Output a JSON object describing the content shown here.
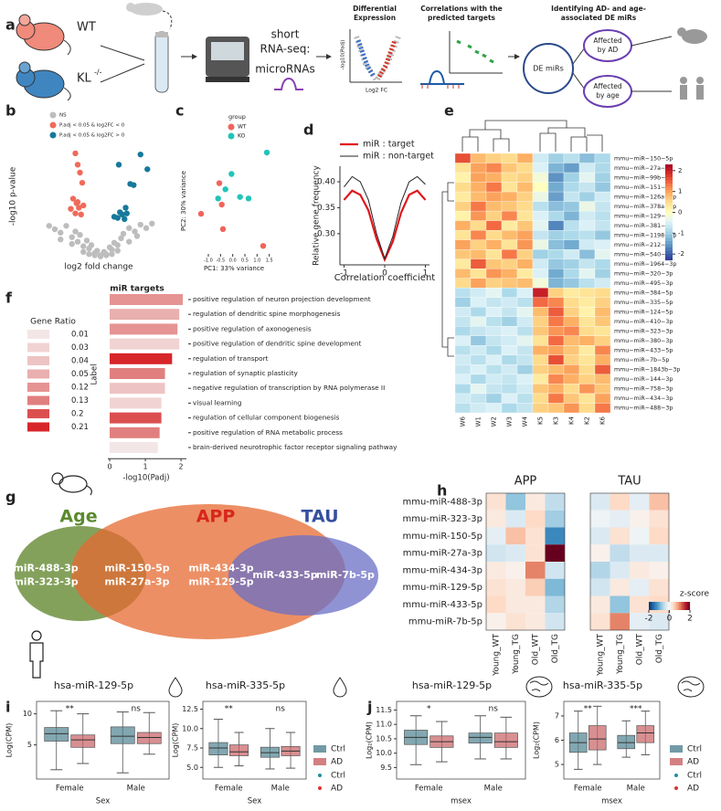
{
  "a": {
    "letter": "a",
    "wt": "WT",
    "kl": "KL",
    "kl_sup": "-/-",
    "seq_line1": "short",
    "seq_line2": "RNA-seq:",
    "mirna": "microRNAs",
    "de_title_1": "Differential",
    "de_title_2": "Expression",
    "de_ylabel": "-log10(Padj)",
    "de_xlabel": "Log2 FC",
    "corr_title_1": "Correlations with the",
    "corr_title_2": "predicted targets",
    "id_title_1": "Identifying AD- and age-",
    "id_title_2": "associated DE miRs",
    "de_mirs": "DE miRs",
    "ad_1": "Affected",
    "ad_2": "by AD",
    "age_1": "Affected",
    "age_2": "by age"
  },
  "b": {
    "type": "scatter",
    "letter": "b",
    "ylabel": "-log10 p-value",
    "xlabel": "log2 fold change",
    "xlim": [
      -6,
      6
    ],
    "ylim": [
      0,
      10
    ],
    "series": [
      {
        "name": "NS",
        "color": "#bdbdbd",
        "x": [
          -4.5,
          -4,
          -3.5,
          -3,
          -2.5,
          -2.2,
          -2,
          -1.8,
          -1.5,
          -1.2,
          -1,
          -0.8,
          -0.5,
          -0.3,
          0,
          0.3,
          0.5,
          0.8,
          1,
          1.2,
          1.5,
          1.8,
          2,
          2.5,
          3,
          3.5,
          4,
          4.5,
          -1.5,
          -1,
          -0.5,
          0,
          0.5,
          1,
          1.5,
          -2.5,
          2.5,
          -3.5,
          3.2
        ],
        "values": [
          2.8,
          2.5,
          2.2,
          2.8,
          1.8,
          2.3,
          1.4,
          2.0,
          1.0,
          1.5,
          0.8,
          1.1,
          0.4,
          0.6,
          0.2,
          0.5,
          0.3,
          0.9,
          0.7,
          1.3,
          1.1,
          1.7,
          2.1,
          2.6,
          2.3,
          2.9,
          2.6,
          3.0,
          0.5,
          0.3,
          0.2,
          0.1,
          0.2,
          0.3,
          0.6,
          1.2,
          1.4,
          1.6,
          1.9
        ]
      },
      {
        "name": "P.adj < 0.05 & log2FC < 0",
        "color": "#ef6b5b",
        "x": [
          -2.2,
          -2.0,
          -1.8,
          -1.6,
          -2.4,
          -2.1,
          -1.5,
          -2.6,
          -1.9,
          -2.2,
          -1.7,
          -2.0
        ],
        "values": [
          9.2,
          8.2,
          7.5,
          6.6,
          5.2,
          4.8,
          4.6,
          4.3,
          4.4,
          3.9,
          3.8,
          4.9
        ]
      },
      {
        "name": "P.adj < 0.05 & log2FC > 0",
        "color": "#17799b",
        "x": [
          1.6,
          3.5,
          4.1,
          2.6,
          2.9,
          2.2,
          1.7,
          1.2,
          1.9,
          2.3,
          2.1,
          1.5
        ],
        "values": [
          8.2,
          9.1,
          7.8,
          6.5,
          6.4,
          4.4,
          4.0,
          3.6,
          3.8,
          3.9,
          3.4,
          3.5
        ]
      }
    ]
  },
  "c": {
    "type": "scatter",
    "letter": "c",
    "xlabel": "PC1: 33% variance",
    "ylabel": "PC2: 30% variance",
    "legend_title": "group",
    "xlim": [
      -1.6,
      1.7
    ],
    "ylim": [
      -1.7,
      1.7
    ],
    "xticks": [
      {
        "value": -1,
        "label": "-1.0"
      },
      -0.5,
      {
        "value": 0,
        "label": "0.0"
      },
      0.5,
      {
        "value": 1,
        "label": "1.0"
      },
      1.5
    ],
    "series": [
      {
        "name": "WT",
        "color": "#f0645a",
        "x": [
          -1.3,
          -0.55,
          -0.4,
          -0.45,
          1.25
        ],
        "values": [
          -0.45,
          0.55,
          -0.95,
          -0.15,
          -1.5
        ]
      },
      {
        "name": "KO",
        "color": "#22c4b8",
        "x": [
          -0.3,
          -0.6,
          -0.05,
          0.3,
          0.65,
          1.4
        ],
        "values": [
          0.35,
          0.05,
          0.85,
          0.1,
          0.05,
          1.55
        ]
      }
    ]
  },
  "d": {
    "type": "line",
    "letter": "d",
    "xlabel": "Correlation coefficient",
    "ylabel": "Relative gene frequency",
    "xlim": [
      -1.1,
      1.1
    ],
    "ylim": [
      0.24,
      0.43
    ],
    "xticks": [
      -1,
      0,
      1
    ],
    "yticks": [
      {
        "value": 0.3,
        "label": "0.30"
      },
      0.35,
      {
        "value": 0.4,
        "label": "0.40"
      }
    ],
    "x": [
      -1,
      -0.8,
      -0.6,
      -0.4,
      -0.2,
      0,
      0.2,
      0.4,
      0.6,
      0.8,
      1
    ],
    "series": [
      {
        "name": "miR : target",
        "color": "#e0161b",
        "values": [
          0.365,
          0.383,
          0.375,
          0.345,
          0.29,
          0.25,
          0.285,
          0.34,
          0.375,
          0.383,
          0.365
        ]
      },
      {
        "name": "miR : non-target",
        "color": "#222222",
        "values": [
          0.39,
          0.41,
          0.4,
          0.365,
          0.3,
          0.252,
          0.295,
          0.36,
          0.4,
          0.41,
          0.395
        ]
      }
    ]
  },
  "e": {
    "type": "heatmap",
    "letter": "e",
    "columns": [
      "W6",
      "W1",
      "W2",
      "W3",
      "W4",
      "K5",
      "K3",
      "K4",
      "K2",
      "K6"
    ],
    "rows": [
      "mmu−miR−150−5p",
      "mmu−miR−27a−3p",
      "mmu−miR−99b−3p",
      "mmu−miR−151−3p",
      "mmu−miR−126a−3p",
      "mmu−miR−378a−3p",
      "mmu−miR−129−5p",
      "mmu−miR−381−3p",
      "mmu−miR−1198−5p",
      "mmu−miR−212−5p",
      "mmu−miR−540−3p",
      "mmu−miR−1964−3p",
      "mmu−miR−320−3p",
      "mmu−miR−495−3p",
      "mmu−miR−384−5p",
      "mmu−miR−335−5p",
      "mmu−miR−124−5p",
      "mmu−miR−410−3p",
      "mmu−miR−323−3p",
      "mmu−miR−380−3p",
      "mmu−miR−433−5p",
      "mmu−miR−7b−5p",
      "mmu−miR−1843b−3p",
      "mmu−miR−144−3p",
      "mmu−miR−758−3p",
      "mmu−miR−434−3p",
      "mmu−miR−488−3p"
    ],
    "values": [
      [
        1.6,
        0.8,
        0.6,
        0.5,
        0.9,
        -0.6,
        -1.0,
        -0.8,
        -1.2,
        -0.9
      ],
      [
        0.4,
        1.0,
        1.2,
        0.7,
        0.5,
        -0.5,
        -1.3,
        -1.5,
        -0.6,
        -0.9
      ],
      [
        0.2,
        1.0,
        0.9,
        0.5,
        0.6,
        -0.2,
        -1.6,
        -1.0,
        -0.4,
        -1.0
      ],
      [
        0.5,
        0.9,
        1.3,
        0.4,
        0.8,
        0.0,
        -1.4,
        -0.9,
        -0.7,
        -1.1
      ],
      [
        0.3,
        0.8,
        1.0,
        0.9,
        0.6,
        -0.3,
        -1.5,
        -0.7,
        -1.0,
        -0.6
      ],
      [
        0.6,
        1.3,
        0.8,
        0.7,
        0.5,
        -0.8,
        -1.2,
        -1.1,
        -0.3,
        -0.7
      ],
      [
        0.2,
        1.1,
        0.6,
        1.2,
        0.4,
        -0.5,
        -0.9,
        -1.3,
        -0.6,
        -0.8
      ],
      [
        0.9,
        0.5,
        1.4,
        0.3,
        0.7,
        -0.4,
        -1.7,
        -0.8,
        -0.5,
        -0.7
      ],
      [
        0.4,
        1.2,
        0.5,
        0.8,
        1.0,
        -0.7,
        -1.0,
        -0.9,
        -0.8,
        -1.1
      ],
      [
        1.0,
        0.6,
        0.9,
        0.4,
        1.1,
        -0.3,
        -1.2,
        -1.4,
        -0.6,
        -0.5
      ],
      [
        0.7,
        0.8,
        0.4,
        1.3,
        0.6,
        -1.0,
        -0.9,
        -0.6,
        -1.2,
        -0.4
      ],
      [
        0.3,
        1.5,
        0.7,
        0.6,
        0.9,
        -0.6,
        -1.1,
        -1.0,
        -0.7,
        -0.9
      ],
      [
        0.8,
        0.4,
        1.1,
        0.9,
        0.3,
        -0.5,
        -1.4,
        -0.9,
        -0.4,
        -1.0
      ],
      [
        0.5,
        1.0,
        0.6,
        0.7,
        0.8,
        -0.2,
        -1.3,
        -1.1,
        -0.8,
        -0.6
      ],
      [
        -0.8,
        -0.6,
        -0.4,
        -0.9,
        -0.5,
        2.0,
        0.6,
        0.3,
        0.4,
        0.5
      ],
      [
        -1.0,
        -0.5,
        -0.7,
        -0.6,
        -0.8,
        1.4,
        1.2,
        0.5,
        0.3,
        0.6
      ],
      [
        -0.6,
        -0.9,
        -0.5,
        -0.7,
        -0.4,
        0.8,
        1.5,
        0.6,
        0.2,
        0.8
      ],
      [
        -0.7,
        -0.4,
        -0.8,
        -1.0,
        -0.6,
        0.6,
        1.3,
        0.9,
        0.4,
        0.7
      ],
      [
        -0.9,
        -0.7,
        -0.6,
        -0.5,
        -0.8,
        0.7,
        1.1,
        1.2,
        0.5,
        0.4
      ],
      [
        -0.5,
        -1.1,
        -0.7,
        -0.6,
        -0.4,
        0.4,
        1.4,
        0.8,
        0.9,
        0.6
      ],
      [
        -0.8,
        -0.6,
        -0.9,
        -0.5,
        -0.7,
        0.9,
        1.0,
        0.7,
        0.3,
        1.2
      ],
      [
        -0.6,
        -0.8,
        -0.5,
        -0.9,
        -0.7,
        0.5,
        1.6,
        0.6,
        0.4,
        0.9
      ],
      [
        -0.7,
        -0.5,
        -0.8,
        -0.6,
        -1.0,
        0.6,
        0.8,
        1.0,
        0.5,
        1.5
      ],
      [
        -0.5,
        -0.9,
        -0.6,
        -0.7,
        -0.5,
        0.3,
        1.2,
        0.9,
        0.6,
        0.8
      ],
      [
        -0.9,
        -0.4,
        -0.7,
        -0.8,
        -0.6,
        0.7,
        0.9,
        0.5,
        1.1,
        0.7
      ],
      [
        -0.6,
        -0.7,
        -1.0,
        -0.5,
        -0.8,
        0.5,
        1.3,
        0.7,
        0.4,
        1.0
      ],
      [
        -0.8,
        -0.6,
        -0.5,
        -0.9,
        -0.7,
        0.6,
        0.7,
        1.1,
        0.5,
        1.3
      ]
    ],
    "clim": [
      -2.3,
      2.3
    ],
    "cticks": [
      2,
      1,
      0,
      -1,
      -2
    ],
    "colormap": [
      "#313695",
      "#4575b4",
      "#74add1",
      "#abd9e9",
      "#e0f3f8",
      "#ffffbf",
      "#fee090",
      "#fdae61",
      "#f46d43",
      "#d73027",
      "#a50026"
    ]
  },
  "f": {
    "type": "bar",
    "letter": "f",
    "title": "miR targets",
    "ylabel": "Label",
    "xlabel": "-log10(Padj)",
    "xlim": [
      0,
      2.1
    ],
    "xticks": [
      0,
      1,
      2
    ],
    "categories": [
      "positive regulation of neuron projection development",
      "regulation of dendritic spine morphogenesis",
      "positive regulation of axonogenesis",
      "positive regulation of dendritic spine development",
      "regulation of transport",
      "regulation of synaptic plasticity",
      "negative regulation of transcription by RNA polymerase II",
      "visual learning",
      "regulation of cellular component biogenesis",
      "positive regulation of RNA metabolic process",
      "brain-derived neurotrophic factor receptor signaling pathway"
    ],
    "values": [
      2.05,
      1.95,
      1.9,
      1.95,
      1.75,
      1.55,
      1.55,
      1.45,
      1.45,
      1.4,
      1.35
    ],
    "gene_ratio": [
      0.12,
      0.05,
      0.12,
      0.03,
      0.21,
      0.13,
      0.04,
      0.03,
      0.2,
      0.13,
      0.01
    ],
    "legend_title": "Gene Ratio",
    "legend_values": [
      0.01,
      0.03,
      0.04,
      0.05,
      0.12,
      0.13,
      0.2,
      0.21
    ],
    "legend_colors": [
      "#f3e6e6",
      "#f1d3d3",
      "#eec3c3",
      "#eaafaf",
      "#e69393",
      "#e17f7f",
      "#dc4f4f",
      "#d7262a"
    ]
  },
  "g": {
    "letter": "g",
    "age": "Age",
    "app": "APP",
    "tau": "TAU",
    "age_only": [
      "miR-488-3p",
      "miR-323-3p"
    ],
    "age_app": [
      "miR-150-5p",
      "miR-27a-3p"
    ],
    "app_only": [
      "miR-434-3p",
      "miR-129-5p"
    ],
    "app_tau": [
      "miR-433-5p"
    ],
    "tau_only": [
      "miR-7b-5p"
    ]
  },
  "h": {
    "type": "heatmap",
    "letter": "h",
    "panels": [
      "APP",
      "TAU"
    ],
    "rows": [
      "mmu-miR-488-3p",
      "mmu-miR-323-3p",
      "mmu-miR-150-5p",
      "mmu-miR-27a-3p",
      "mmu-miR-434-3p",
      "mmu-miR-129-5p",
      "mmu-miR-433-5p",
      "mmu-miR-7b-5p"
    ],
    "columns": [
      "Young_WT",
      "Young_TG",
      "Old_WT",
      "Old_TG"
    ],
    "values": [
      [
        [
          0.3,
          -0.8,
          0.2,
          -0.5
        ],
        [
          0.2,
          -0.3,
          0.4,
          -0.7
        ],
        [
          -0.2,
          0.6,
          0.3,
          -1.3
        ],
        [
          -0.4,
          -0.3,
          0.3,
          2.0
        ],
        [
          0.2,
          0.1,
          1.0,
          -0.4
        ],
        [
          0.3,
          0.2,
          0.5,
          -0.9
        ],
        [
          0.4,
          0.2,
          0.2,
          -0.6
        ],
        [
          0.1,
          0.3,
          0.2,
          -0.4
        ]
      ],
      [
        [
          -0.3,
          0.4,
          -0.2,
          0.6
        ],
        [
          -0.1,
          -0.2,
          0.1,
          0.3
        ],
        [
          -0.3,
          0.3,
          -0.1,
          0.4
        ],
        [
          0.1,
          -0.5,
          -0.3,
          -0.3
        ],
        [
          -0.6,
          -0.3,
          0.2,
          0.1
        ],
        [
          -0.4,
          0.2,
          -0.2,
          0.3
        ],
        [
          0.2,
          -0.8,
          0.3,
          0.4
        ],
        [
          0.3,
          1.0,
          -0.2,
          -0.3
        ]
      ]
    ],
    "colorbar_title": "z-score",
    "clim": [
      -2,
      2
    ],
    "cticks": [
      -2,
      0,
      2
    ],
    "colormap": [
      "#053061",
      "#2166ac",
      "#4393c3",
      "#92c5de",
      "#d1e5f0",
      "#f7f7f7",
      "#fddbc7",
      "#f4a582",
      "#d6604d",
      "#b2182b",
      "#67001f"
    ]
  },
  "i": {
    "letter": "i"
  },
  "i1": {
    "type": "box",
    "title": "hsa-miR-129-5p",
    "ylabel": "Log(CPM)",
    "xlabel": "Sex",
    "categories": [
      "Female",
      "Male"
    ],
    "ylim": [
      -0.5,
      12
    ],
    "yticks": [
      5,
      10
    ],
    "significance": [
      "**",
      "ns"
    ],
    "legend": false,
    "series": [
      {
        "name": "Ctrl",
        "color": "#4f8190",
        "point_color": "#1f8fa0",
        "boxes": [
          [
            1,
            5.6,
            6.8,
            7.8,
            10.5
          ],
          [
            0.5,
            5.2,
            6.4,
            7.9,
            10.3
          ]
        ]
      },
      {
        "name": "AD",
        "color": "#c86063",
        "point_color": "#e03030",
        "boxes": [
          [
            2,
            4.6,
            5.8,
            6.6,
            10
          ],
          [
            3.5,
            5.2,
            6.2,
            7,
            10.2
          ]
        ]
      }
    ]
  },
  "i2": {
    "type": "box",
    "title": "hsa-miR-335-5p",
    "ylabel": "Log(CPM)",
    "xlabel": "Sex",
    "categories": [
      "Female",
      "Male"
    ],
    "ylim": [
      3.5,
      13.5
    ],
    "yticks": [
      {
        "value": 5,
        "label": "5.0"
      },
      7.5,
      {
        "value": 10,
        "label": "10.0"
      },
      12.5
    ],
    "significance": [
      "**",
      "ns"
    ],
    "legend": true,
    "series": [
      {
        "name": "Ctrl",
        "color": "#4f8190",
        "point_color": "#1f8fa0",
        "boxes": [
          [
            5,
            6.6,
            7.5,
            8.2,
            11.2
          ],
          [
            4.8,
            6.3,
            6.9,
            7.6,
            10
          ]
        ]
      },
      {
        "name": "AD",
        "color": "#c86063",
        "point_color": "#e03030",
        "boxes": [
          [
            5.2,
            6.5,
            7.0,
            7.9,
            9.5
          ],
          [
            4.9,
            6.5,
            7.1,
            7.7,
            9.5
          ]
        ]
      }
    ]
  },
  "j": {
    "letter": "j"
  },
  "j1": {
    "type": "box",
    "title": "hsa-miR-129-5p",
    "ylabel": "Log₂(CPM)",
    "xlabel": "msex",
    "categories": [
      "Female",
      "Male"
    ],
    "ylim": [
      9.1,
      11.8
    ],
    "yticks": [
      9.5,
      {
        "value": 10,
        "label": "10.0"
      },
      10.5,
      {
        "value": 11,
        "label": "11.0"
      },
      11.5
    ],
    "significance": [
      "*",
      "ns"
    ],
    "legend": false,
    "series": [
      {
        "name": "Ctrl",
        "color": "#4f8190",
        "point_color": "#1f8fa0",
        "boxes": [
          [
            9.6,
            10.3,
            10.55,
            10.8,
            11.3
          ],
          [
            9.8,
            10.35,
            10.55,
            10.7,
            11.3
          ]
        ]
      },
      {
        "name": "AD",
        "color": "#c86063",
        "point_color": "#e03030",
        "boxes": [
          [
            9.7,
            10.2,
            10.4,
            10.6,
            11.1
          ],
          [
            9.8,
            10.2,
            10.4,
            10.7,
            11.25
          ]
        ]
      }
    ]
  },
  "j2": {
    "type": "box",
    "title": "hsa-miR-335-5p",
    "ylabel": "Log₂(CPM)",
    "xlabel": "msex",
    "categories": [
      "Female",
      "Male"
    ],
    "ylim": [
      4.4,
      7.6
    ],
    "yticks": [
      5,
      6,
      7
    ],
    "significance": [
      "**",
      "***"
    ],
    "legend": true,
    "series": [
      {
        "name": "Ctrl",
        "color": "#4f8190",
        "point_color": "#1f8fa0",
        "boxes": [
          [
            4.8,
            5.5,
            5.9,
            6.3,
            7.2
          ],
          [
            5.3,
            5.65,
            5.9,
            6.2,
            6.8
          ]
        ]
      },
      {
        "name": "AD",
        "color": "#c86063",
        "point_color": "#e03030",
        "boxes": [
          [
            5,
            5.6,
            6.05,
            6.6,
            7.4
          ],
          [
            5.4,
            5.9,
            6.3,
            6.6,
            7.2
          ]
        ]
      }
    ]
  }
}
